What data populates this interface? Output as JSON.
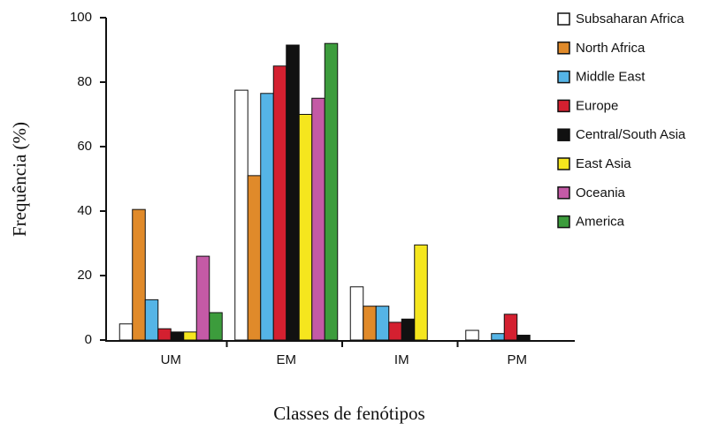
{
  "chart_data": {
    "type": "bar",
    "x_label": "Classes de fenótipos",
    "y_label": "Frequência (%)",
    "categories": [
      "UM",
      "EM",
      "IM",
      "PM"
    ],
    "series": [
      {
        "name": "Subsaharan Africa",
        "color": "#ffffff",
        "values": [
          5,
          77.5,
          16.5,
          3
        ]
      },
      {
        "name": "North Africa",
        "color": "#e08a2a",
        "values": [
          40.5,
          51,
          10.5,
          0
        ]
      },
      {
        "name": "Middle East",
        "color": "#55b4e6",
        "values": [
          12.5,
          76.5,
          10.5,
          2
        ]
      },
      {
        "name": "Europe",
        "color": "#d42030",
        "values": [
          3.5,
          85,
          5.5,
          8
        ]
      },
      {
        "name": "Central/South Asia",
        "color": "#111111",
        "values": [
          2.5,
          91.5,
          6.5,
          1.5
        ]
      },
      {
        "name": "East Asia",
        "color": "#f5e61e",
        "values": [
          2.5,
          70,
          29.5,
          0
        ]
      },
      {
        "name": "Oceania",
        "color": "#c45aa6",
        "values": [
          26,
          75,
          0,
          0
        ]
      },
      {
        "name": "America",
        "color": "#3c9c3c",
        "values": [
          8.5,
          92,
          0,
          0
        ]
      }
    ],
    "ylim": [
      0,
      100
    ],
    "yticks": [
      0,
      20,
      40,
      60,
      80,
      100
    ],
    "grid": false
  }
}
